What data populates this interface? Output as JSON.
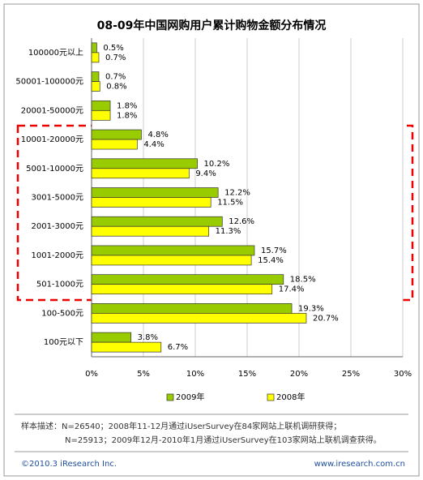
{
  "chart_data": {
    "type": "bar",
    "orientation": "horizontal",
    "title": "08-09年中国网购用户累计购物金额分布情况",
    "categories": [
      "100000元以上",
      "50001-100000元",
      "20001-50000元",
      "10001-20000元",
      "5001-10000元",
      "3001-5000元",
      "2001-3000元",
      "1001-2000元",
      "501-1000元",
      "100-500元",
      "100元以下"
    ],
    "series": [
      {
        "name": "2009年",
        "color": "#99cc00",
        "values": [
          0.5,
          0.7,
          1.8,
          4.8,
          10.2,
          12.2,
          12.6,
          15.7,
          18.5,
          19.3,
          3.8
        ],
        "value_labels": [
          "0.5%",
          "0.7%",
          "1.8%",
          "4.8%",
          "10.2%",
          "12.2%",
          "12.6%",
          "15.7%",
          "18.5%",
          "19.3%",
          "3.8%"
        ]
      },
      {
        "name": "2008年",
        "color": "#ffff00",
        "values": [
          0.7,
          0.8,
          1.8,
          4.4,
          9.4,
          11.5,
          11.3,
          15.4,
          17.4,
          20.7,
          6.7
        ],
        "value_labels": [
          "0.7%",
          "0.8%",
          "1.8%",
          "4.4%",
          "9.4%",
          "11.5%",
          "11.3%",
          "15.4%",
          "17.4%",
          "20.7%",
          "6.7%"
        ]
      }
    ],
    "xlim": [
      0,
      30
    ],
    "xticks": [
      {
        "value": 0,
        "label": "0%"
      },
      {
        "value": 5,
        "label": "5%"
      },
      {
        "value": 10,
        "label": "10%"
      },
      {
        "value": 15,
        "label": "15%"
      },
      {
        "value": 20,
        "label": "20%"
      },
      {
        "value": 25,
        "label": "25%"
      },
      {
        "value": 30,
        "label": "30%"
      }
    ],
    "grid": true,
    "legend": "bottom",
    "notes": [
      "样本描述：N=26540；2008年11-12月通过iUserSurvey在84家网站上联机调研获得；",
      "N=25913；2009年12月-2010年1月通过iUserSurvey在103家网站上联机调查获得。"
    ],
    "copyright": "©2010.3 iResearch Inc.",
    "website": "www.iresearch.com.cn"
  }
}
